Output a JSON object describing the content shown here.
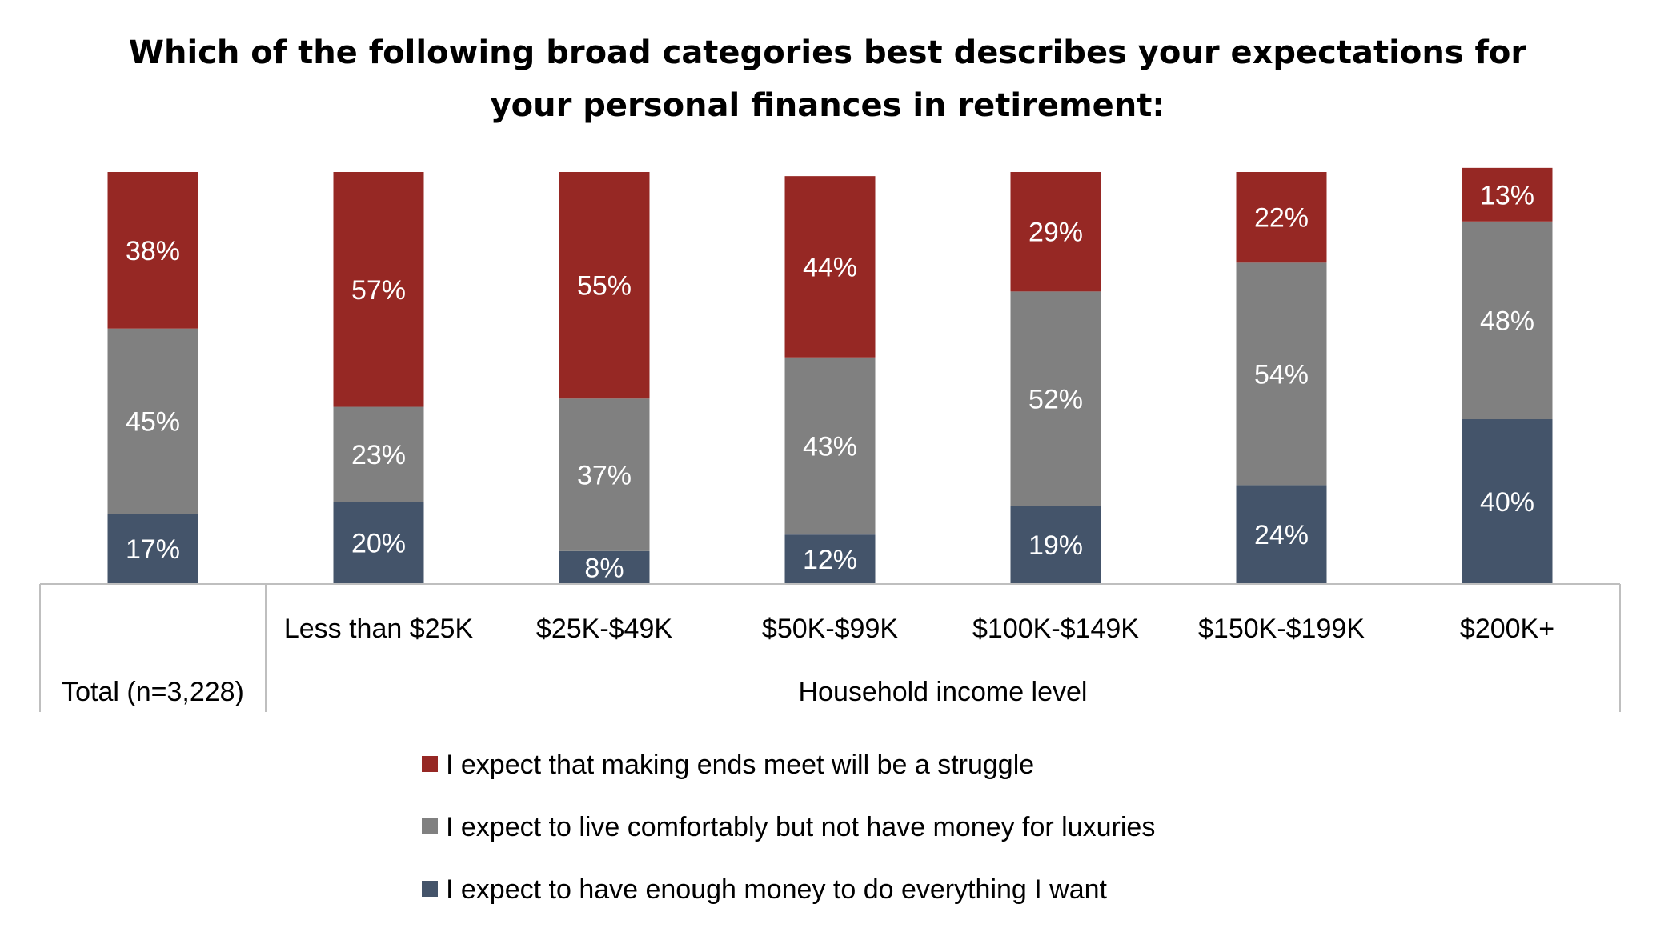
{
  "chart_data": {
    "type": "bar",
    "stacked": true,
    "percent_stacked": true,
    "title_lines": [
      "Which of the following broad categories best describes your expectations for",
      "your personal finances in retirement:"
    ],
    "categories": [
      "Total (n=3,228)",
      "Less than $25K",
      "$25K-$49K",
      "$50K-$99K",
      "$100K-$149K",
      "$150K-$199K",
      "$200K+"
    ],
    "group_label": "Household income level",
    "series": [
      {
        "name": "I expect to have enough money to do everything I want",
        "color": "#44546a",
        "values": [
          17,
          20,
          8,
          12,
          19,
          24,
          40
        ],
        "labels": [
          "17%",
          "20%",
          "8%",
          "12%",
          "19%",
          "24%",
          "40%"
        ]
      },
      {
        "name": "I expect to live comfortably but not have money for luxuries",
        "color": "#808080",
        "values": [
          45,
          23,
          37,
          43,
          52,
          54,
          48
        ],
        "labels": [
          "45%",
          "23%",
          "37%",
          "43%",
          "52%",
          "54%",
          "48%"
        ]
      },
      {
        "name": "I expect that making ends meet will be a struggle",
        "color": "#962824",
        "values": [
          38,
          57,
          55,
          44,
          29,
          22,
          13
        ],
        "labels": [
          "38%",
          "57%",
          "55%",
          "44%",
          "29%",
          "22%",
          "13%"
        ]
      }
    ],
    "legend_order": [
      2,
      1,
      0
    ],
    "legend_position": "bottom",
    "grid": false,
    "ylim": [
      0,
      100
    ]
  }
}
